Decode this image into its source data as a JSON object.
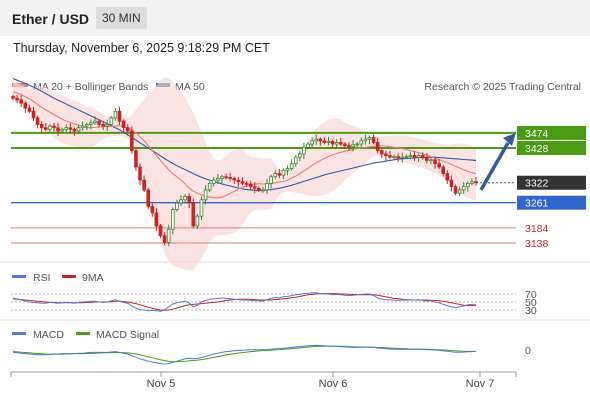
{
  "header": {
    "title": "Ether / USD",
    "interval": "30 MIN",
    "datetime": "Thursday, November 6, 2025 9:18:29 PM CET"
  },
  "legend": {
    "ma20": "MA 20 + Bollinger Bands",
    "ma50": "MA 50",
    "credit": "Research © 2025 Trading Central",
    "rsi": "RSI",
    "rsi_ma": "9MA",
    "macd": "MACD",
    "macd_signal": "MACD Signal"
  },
  "colors": {
    "candle_up": "#2e8b2e",
    "candle_down": "#cc2222",
    "ma20": "#e87a7a",
    "ma50": "#2f5aa0",
    "bollinger": "#fbd4d4",
    "resistance": "#4a9a14",
    "support": "#3366cc",
    "level_red": "#e37777",
    "arrow": "#2f5aa0",
    "rsi": "#5577dd",
    "rsi_ma": "#cc2222",
    "macd": "#5577dd",
    "macd_signal": "#4a9a14"
  },
  "chart_data": [
    {
      "type": "candlestick",
      "panel": "price",
      "y_range": [
        3080,
        3660
      ],
      "x_ticks": [
        "Nov 5",
        "Nov 6",
        "Nov 7"
      ],
      "current_price": "3322",
      "levels": [
        {
          "label": "3474",
          "value": 3474,
          "style": "resistance"
        },
        {
          "label": "3428",
          "value": 3428,
          "style": "resistance"
        },
        {
          "label": "3261",
          "value": 3261,
          "style": "support"
        },
        {
          "label": "3184",
          "value": 3184,
          "style": "level"
        },
        {
          "label": "3138",
          "value": 3138,
          "style": "level"
        }
      ],
      "close": [
        3580,
        3575,
        3565,
        3550,
        3540,
        3520,
        3500,
        3490,
        3485,
        3495,
        3490,
        3480,
        3485,
        3490,
        3485,
        3480,
        3490,
        3495,
        3500,
        3505,
        3510,
        3500,
        3495,
        3500,
        3520,
        3540,
        3510,
        3490,
        3480,
        3420,
        3370,
        3330,
        3300,
        3250,
        3230,
        3190,
        3160,
        3140,
        3180,
        3240,
        3260,
        3270,
        3280,
        3260,
        3190,
        3220,
        3270,
        3300,
        3320,
        3330,
        3335,
        3340,
        3338,
        3335,
        3330,
        3325,
        3320,
        3318,
        3310,
        3305,
        3300,
        3300,
        3320,
        3340,
        3350,
        3345,
        3360,
        3365,
        3380,
        3400,
        3410,
        3430,
        3440,
        3450,
        3455,
        3450,
        3445,
        3448,
        3440,
        3445,
        3440,
        3435,
        3432,
        3438,
        3440,
        3450,
        3455,
        3460,
        3445,
        3420,
        3410,
        3405,
        3400,
        3402,
        3398,
        3400,
        3402,
        3405,
        3400,
        3405,
        3398,
        3390,
        3392,
        3380,
        3370,
        3350,
        3330,
        3310,
        3290,
        3300,
        3310,
        3320,
        3325,
        3322
      ],
      "ma20": [
        3600,
        3596,
        3591,
        3585,
        3578,
        3570,
        3561,
        3552,
        3544,
        3537,
        3530,
        3523,
        3516,
        3510,
        3506,
        3502,
        3498,
        3494,
        3490,
        3490,
        3491,
        3492,
        3493,
        3494,
        3494,
        3495,
        3496,
        3492,
        3488,
        3484,
        3474,
        3462,
        3450,
        3436,
        3420,
        3405,
        3390,
        3375,
        3362,
        3350,
        3340,
        3330,
        3318,
        3306,
        3296,
        3290,
        3285,
        3280,
        3278,
        3276,
        3276,
        3278,
        3283,
        3290,
        3296,
        3302,
        3308,
        3312,
        3316,
        3318,
        3319,
        3318,
        3318,
        3320,
        3322,
        3324,
        3326,
        3330,
        3336,
        3342,
        3350,
        3358,
        3366,
        3375,
        3383,
        3390,
        3396,
        3402,
        3407,
        3411,
        3415,
        3418,
        3421,
        3424,
        3426,
        3428,
        3430,
        3432,
        3433,
        3434,
        3434,
        3434,
        3432,
        3430,
        3428,
        3426,
        3424,
        3420,
        3417,
        3414,
        3410,
        3406,
        3402,
        3398,
        3393,
        3388,
        3383,
        3378,
        3372,
        3367,
        3362,
        3357,
        3353,
        3350
      ],
      "ma50": [
        3640,
        3635,
        3630,
        3625,
        3620,
        3614,
        3608,
        3601,
        3594,
        3587,
        3580,
        3574,
        3568,
        3562,
        3556,
        3550,
        3544,
        3538,
        3532,
        3526,
        3520,
        3514,
        3508,
        3502,
        3496,
        3490,
        3484,
        3476,
        3468,
        3460,
        3452,
        3444,
        3436,
        3428,
        3420,
        3412,
        3404,
        3396,
        3388,
        3381,
        3374,
        3368,
        3362,
        3356,
        3350,
        3344,
        3339,
        3334,
        3330,
        3326,
        3322,
        3318,
        3315,
        3312,
        3309,
        3306,
        3303,
        3301,
        3300,
        3299,
        3299,
        3299,
        3300,
        3301,
        3303,
        3305,
        3308,
        3311,
        3314,
        3318,
        3322,
        3326,
        3330,
        3334,
        3338,
        3342,
        3346,
        3349,
        3352,
        3355,
        3358,
        3361,
        3364,
        3367,
        3370,
        3373,
        3376,
        3379,
        3382,
        3384,
        3386,
        3388,
        3390,
        3392,
        3394,
        3395,
        3396,
        3397,
        3398,
        3399,
        3400,
        3400,
        3400,
        3400,
        3399,
        3398,
        3397,
        3396,
        3395,
        3394,
        3393,
        3392,
        3391,
        3390
      ]
    },
    {
      "type": "line",
      "panel": "RSI",
      "y_range": [
        10,
        90
      ],
      "y_ticks": [
        "70",
        "50",
        "30"
      ],
      "series": [
        {
          "name": "RSI",
          "values": [
            60,
            58,
            55,
            52,
            50,
            49,
            48,
            47,
            47,
            49,
            48,
            47,
            48,
            49,
            48,
            47,
            49,
            50,
            51,
            52,
            52,
            50,
            49,
            50,
            53,
            56,
            52,
            49,
            47,
            40,
            35,
            31,
            30,
            28,
            29,
            28,
            27,
            30,
            38,
            45,
            48,
            50,
            52,
            48,
            38,
            42,
            50,
            54,
            57,
            58,
            59,
            60,
            59,
            58,
            57,
            56,
            55,
            55,
            54,
            53,
            53,
            52,
            56,
            59,
            61,
            60,
            63,
            64,
            66,
            68,
            69,
            71,
            72,
            73,
            73,
            71,
            70,
            70,
            68,
            69,
            68,
            67,
            66,
            67,
            68,
            69,
            70,
            70,
            66,
            60,
            57,
            56,
            55,
            55,
            54,
            55,
            55,
            56,
            55,
            56,
            54,
            52,
            53,
            50,
            48,
            44,
            41,
            38,
            36,
            38,
            40,
            43,
            44,
            44
          ]
        },
        {
          "name": "9MA",
          "values": [
            58,
            57,
            56,
            55,
            54,
            53,
            52,
            51,
            50,
            49,
            49,
            48,
            48,
            48,
            48,
            48,
            48,
            48,
            49,
            49,
            50,
            50,
            50,
            50,
            51,
            52,
            52,
            51,
            50,
            48,
            46,
            43,
            40,
            37,
            34,
            32,
            30,
            29,
            30,
            32,
            35,
            38,
            41,
            43,
            44,
            45,
            46,
            47,
            48,
            49,
            50,
            52,
            54,
            55,
            56,
            57,
            57,
            57,
            57,
            56,
            55,
            55,
            55,
            55,
            56,
            57,
            58,
            59,
            61,
            62,
            64,
            66,
            68,
            69,
            70,
            71,
            71,
            71,
            71,
            71,
            70,
            70,
            69,
            69,
            68,
            68,
            68,
            68,
            68,
            67,
            65,
            63,
            61,
            59,
            58,
            57,
            56,
            55,
            55,
            55,
            55,
            55,
            54,
            54,
            53,
            52,
            50,
            48,
            46,
            44,
            42,
            41,
            41,
            41
          ]
        }
      ]
    },
    {
      "type": "line",
      "panel": "MACD",
      "y_range": [
        -20,
        10
      ],
      "y_ticks": [
        "0"
      ],
      "series": [
        {
          "name": "MACD",
          "values": [
            -3,
            -3.5,
            -4,
            -4.5,
            -5,
            -5.5,
            -6,
            -6,
            -6,
            -5.5,
            -5,
            -5,
            -4.5,
            -4.5,
            -4.5,
            -4.5,
            -4,
            -4,
            -3.5,
            -3,
            -3,
            -3,
            -3,
            -3,
            -2.5,
            -2,
            -3,
            -4,
            -5,
            -7,
            -9,
            -11,
            -12.5,
            -14,
            -15,
            -16,
            -17,
            -17.5,
            -17,
            -15.5,
            -14,
            -12.5,
            -11,
            -10.5,
            -11,
            -10.5,
            -9.5,
            -8,
            -6.5,
            -5,
            -4,
            -3,
            -2,
            -1.5,
            -1,
            -0.5,
            -0.2,
            0,
            0.2,
            0.3,
            0.3,
            0.2,
            0.5,
            1,
            1.5,
            1.8,
            2.2,
            2.6,
            3.2,
            3.8,
            4.2,
            4.8,
            5.2,
            5.6,
            5.8,
            5.6,
            5.2,
            5,
            4.6,
            4.5,
            4.2,
            3.8,
            3.4,
            3.3,
            3.2,
            3.3,
            3.4,
            3.5,
            3.2,
            2.5,
            2,
            1.6,
            1.2,
            1,
            0.8,
            0.8,
            0.8,
            0.9,
            0.8,
            0.8,
            0.6,
            0.4,
            0.3,
            0,
            -0.4,
            -1,
            -1.6,
            -2.2,
            -2.8,
            -2.8,
            -2.6,
            -2.3,
            -2,
            -1.8
          ]
        },
        {
          "name": "MACD Signal",
          "values": [
            -2,
            -2.3,
            -2.7,
            -3.1,
            -3.5,
            -4,
            -4.4,
            -4.8,
            -5.1,
            -5.2,
            -5.2,
            -5.2,
            -5.1,
            -5,
            -4.9,
            -4.8,
            -4.7,
            -4.6,
            -4.4,
            -4.2,
            -4,
            -3.8,
            -3.6,
            -3.5,
            -3.3,
            -3.1,
            -3.1,
            -3.3,
            -3.6,
            -4.2,
            -5,
            -6,
            -7.2,
            -8.5,
            -9.8,
            -11,
            -12.2,
            -13.3,
            -14.1,
            -14.5,
            -14.6,
            -14.4,
            -14,
            -13.5,
            -13.1,
            -12.6,
            -12,
            -11.2,
            -10.3,
            -9.3,
            -8.3,
            -7.3,
            -6.3,
            -5.4,
            -4.6,
            -3.9,
            -3.2,
            -2.6,
            -2,
            -1.5,
            -1.1,
            -0.8,
            -0.5,
            -0.2,
            0.2,
            0.5,
            0.9,
            1.3,
            1.7,
            2.1,
            2.6,
            3.1,
            3.6,
            4,
            4.4,
            4.6,
            4.7,
            4.8,
            4.8,
            4.8,
            4.7,
            4.5,
            4.3,
            4.1,
            3.9,
            3.8,
            3.7,
            3.6,
            3.5,
            3.3,
            3.1,
            2.8,
            2.5,
            2.2,
            1.9,
            1.7,
            1.5,
            1.3,
            1.2,
            1.1,
            1,
            0.9,
            0.8,
            0.6,
            0.4,
            0.1,
            -0.2,
            -0.6,
            -1,
            -1.3,
            -1.5,
            -1.7,
            -1.8,
            -1.8
          ]
        }
      ]
    }
  ]
}
